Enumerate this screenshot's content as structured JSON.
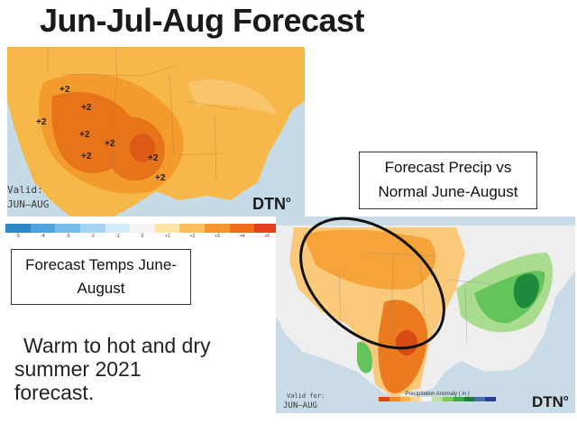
{
  "slide": {
    "title": "Jun-Jul-Aug Forecast"
  },
  "temp_map": {
    "valid_label": "Valid:",
    "valid_period": "JUN—AUG",
    "brand": "DTN",
    "anomaly_labels": [
      "+2",
      "+2",
      "+2",
      "+2",
      "+2",
      "+2",
      "+2",
      "+2"
    ],
    "scale": {
      "labels": [
        "-5",
        "-4",
        "-3",
        "-2",
        "-1",
        "0",
        "+1",
        "+2",
        "+3",
        "+4",
        "+5"
      ],
      "colors": [
        "#2f86c9",
        "#4fa3db",
        "#78bde8",
        "#a6d4f1",
        "#d3eaf8",
        "#f4f4f4",
        "#fde3a8",
        "#fbbf5e",
        "#f7962f",
        "#ef6c1c",
        "#e3401b"
      ]
    },
    "colors": {
      "land_light": "#f7b84a",
      "land_mid": "#f39b2c",
      "land_hot": "#e8741a",
      "land_hottest": "#dc5a16",
      "water": "#c5dbe8"
    }
  },
  "precip_map": {
    "valid_label": "Valid for:",
    "valid_period": "JUN—AUG",
    "legend_title": "Precipitation Anomaly ( in )",
    "brand": "DTN",
    "legend_colors": [
      "#d9480f",
      "#f08a24",
      "#f7b24a",
      "#fcd89a",
      "#f4f4f4",
      "#b9e3a0",
      "#7ccb5e",
      "#3fa847",
      "#1f7f3a",
      "#4c6fa8",
      "#2a3d8c"
    ],
    "colors": {
      "dry_light": "#fbc97a",
      "dry_mid": "#f6a33a",
      "dry_strong": "#ec7a1f",
      "dry_extreme": "#d74a14",
      "wet_light": "#a9dc8f",
      "wet_mid": "#62c45a",
      "wet_strong": "#1f8a3c",
      "land": "#eeeeee",
      "water": "#c9dbe6"
    }
  },
  "callouts": {
    "temp_line1": "Forecast Temps June-",
    "temp_line2": "August",
    "precip_line1": "Forecast Precip vs",
    "precip_line2": "Normal June-August"
  },
  "body": {
    "line1": "Warm to hot and dry",
    "line2": "summer 2021",
    "line3": "forecast."
  }
}
